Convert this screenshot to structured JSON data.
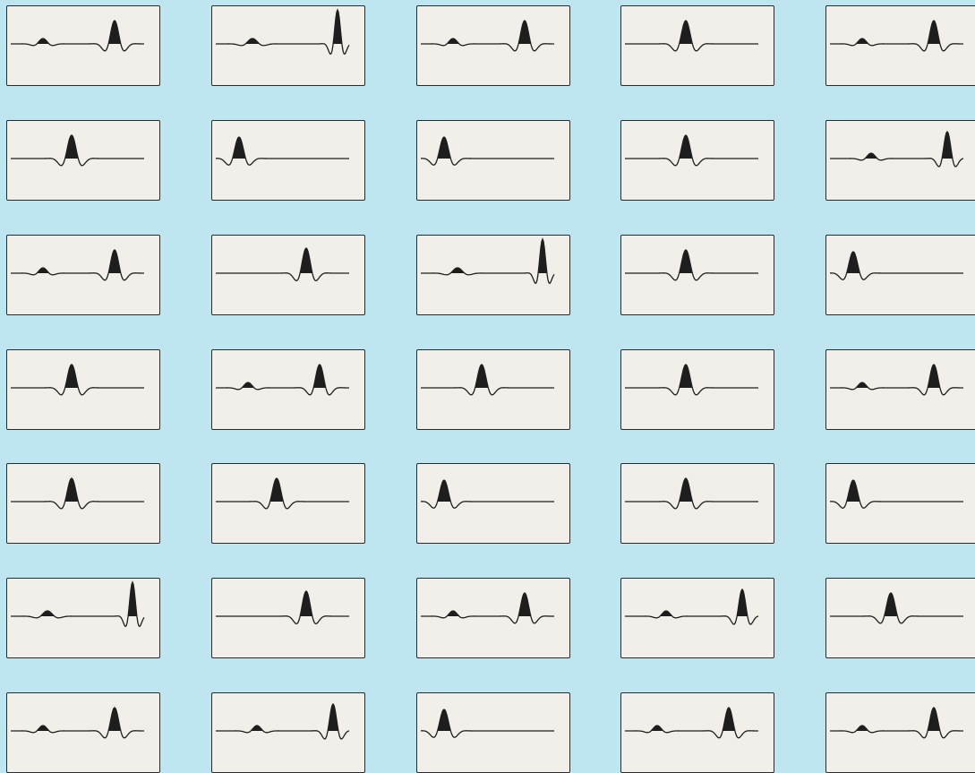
{
  "layout_note": "",
  "grid": {
    "rows": 7,
    "cols": 5,
    "background": "#bfe5f0",
    "panel_fill": "#f2efea",
    "panel_border": "#2a2a2a",
    "wave_fill": "#1e1e1e"
  },
  "panels": [
    {
      "pattern": "late-burst"
    },
    {
      "pattern": "late-spike"
    },
    {
      "pattern": "late-burst"
    },
    {
      "pattern": "mid-burst"
    },
    {
      "pattern": "late-burst"
    },
    {
      "pattern": "mid-burst"
    },
    {
      "pattern": "early-burst"
    },
    {
      "pattern": "early-burst"
    },
    {
      "pattern": "mid-burst"
    },
    {
      "pattern": "late-trough"
    },
    {
      "pattern": "late-burst"
    },
    {
      "pattern": "mid-late-burst"
    },
    {
      "pattern": "late-spike"
    },
    {
      "pattern": "mid-burst"
    },
    {
      "pattern": "early-burst"
    },
    {
      "pattern": "mid-burst"
    },
    {
      "pattern": "late-burst"
    },
    {
      "pattern": "mid-burst"
    },
    {
      "pattern": "mid-burst"
    },
    {
      "pattern": "late-burst"
    },
    {
      "pattern": "mid-burst"
    },
    {
      "pattern": "mid-burst"
    },
    {
      "pattern": "early-burst"
    },
    {
      "pattern": "mid-burst"
    },
    {
      "pattern": "early-burst"
    },
    {
      "pattern": "late-spike"
    },
    {
      "pattern": "mid-late-burst"
    },
    {
      "pattern": "late-burst"
    },
    {
      "pattern": "late-trough"
    },
    {
      "pattern": "mid-burst"
    },
    {
      "pattern": "late-burst"
    },
    {
      "pattern": "late-trough"
    },
    {
      "pattern": "early-burst"
    },
    {
      "pattern": "late-burst"
    },
    {
      "pattern": "late-burst"
    }
  ]
}
